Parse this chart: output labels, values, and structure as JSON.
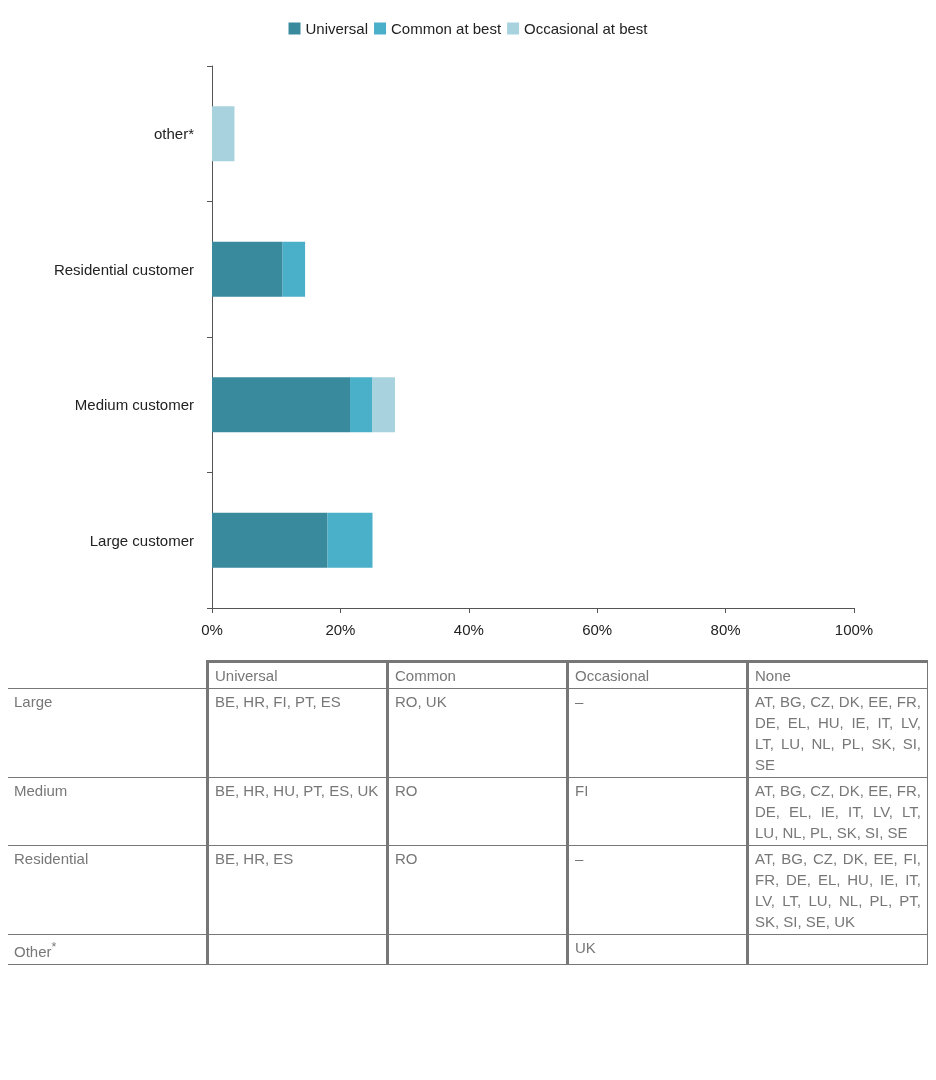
{
  "chart_data": [
    {
      "type": "bar",
      "orientation": "horizontal",
      "stacked": true,
      "categories": [
        "other*",
        "Residential customer",
        "Medium customer",
        "Large customer"
      ],
      "series": [
        {
          "name": "Universal",
          "color": "#3a8a9e",
          "values": [
            null,
            11,
            21.5,
            18
          ]
        },
        {
          "name": "Common at best",
          "color": "#4aafc8",
          "values": [
            null,
            3.5,
            3.5,
            7
          ]
        },
        {
          "name": "Occasional at best",
          "color": "#a8d3de",
          "values": [
            3.5,
            null,
            3.5,
            null
          ]
        }
      ],
      "xlim": [
        0,
        100
      ],
      "xticks": [
        {
          "value": 0,
          "label": "0%"
        },
        {
          "value": 20,
          "label": "20%"
        },
        {
          "value": 40,
          "label": "40%"
        },
        {
          "value": 60,
          "label": "60%"
        },
        {
          "value": 80,
          "label": "80%"
        },
        {
          "value": 100,
          "label": "100%"
        }
      ],
      "grid": false,
      "legend": "top"
    },
    {
      "type": "other",
      "categories": [
        "Universal",
        "Common",
        "Occasional",
        "None"
      ],
      "y_categories": [
        "Large",
        "Medium",
        "Residential",
        "Other$^{*}$"
      ],
      "cell_labels": [
        [
          "BE, HR, FI, PT, ES",
          "RO, UK",
          "–",
          "AT, BG, CZ, DK, EE, FR, DE, EL, HU, IE, IT, LV, LT, LU, NL, PL, SK, SI, SE"
        ],
        [
          "BE, HR, HU, PT, ES, UK",
          "RO",
          "FI",
          "AT, BG, CZ, DK, EE, FR, DE, EL, IE, IT, LV, LT, LU, NL, PL, SK, SI, SE"
        ],
        [
          "BE, HR, ES",
          "RO",
          "–",
          "AT, BG, CZ, DK, EE, FI, FR, DE, EL, HU, IE, IT, LV, LT, LU, NL, PL, PT, SK, SI, SE, UK"
        ],
        [
          null,
          null,
          "UK",
          null
        ]
      ]
    }
  ]
}
